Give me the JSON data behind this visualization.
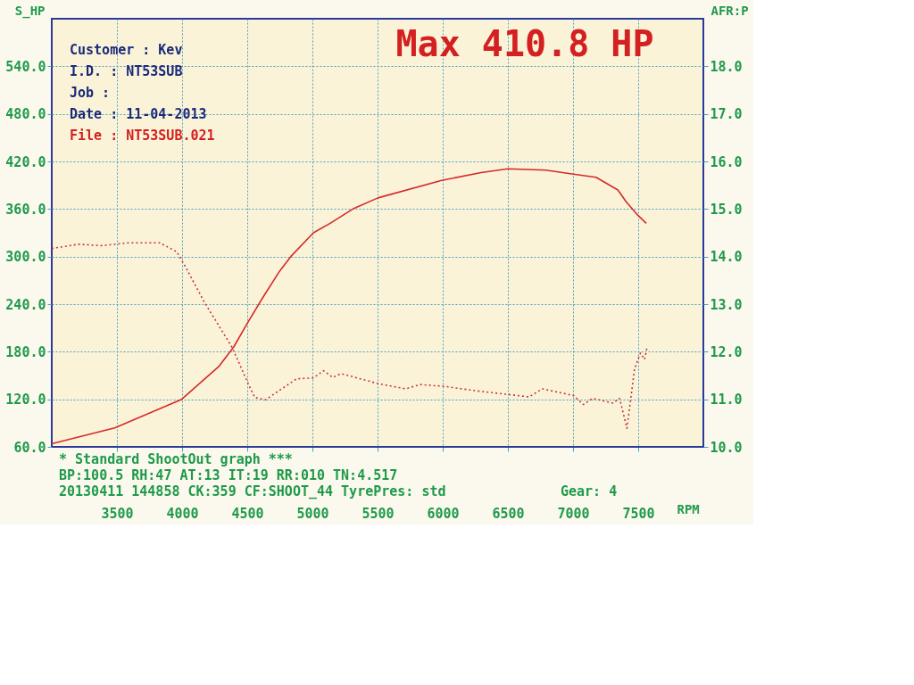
{
  "chart_data": {
    "type": "line",
    "ylabel": "S_HP",
    "y2label": "AFR:P",
    "xlabel": "RPM",
    "xlim": [
      3000,
      8000
    ],
    "xticks": [
      3500,
      4000,
      4500,
      5000,
      5500,
      6000,
      6500,
      7000,
      7500
    ],
    "ylim": [
      60,
      600
    ],
    "yticks": [
      {
        "value": 60,
        "label": "60.0"
      },
      {
        "value": 120,
        "label": "120.0"
      },
      {
        "value": 180,
        "label": "180.0"
      },
      {
        "value": 240,
        "label": "240.0"
      },
      {
        "value": 300,
        "label": "300.0"
      },
      {
        "value": 360,
        "label": "360.0"
      },
      {
        "value": 420,
        "label": "420.0"
      },
      {
        "value": 480,
        "label": "480.0"
      },
      {
        "value": 540,
        "label": "540.0"
      }
    ],
    "y2lim": [
      10,
      19
    ],
    "y2ticks": [
      {
        "value": 10,
        "label": "10.0"
      },
      {
        "value": 11,
        "label": "11.0"
      },
      {
        "value": 12,
        "label": "12.0"
      },
      {
        "value": 13,
        "label": "13.0"
      },
      {
        "value": 14,
        "label": "14.0"
      },
      {
        "value": 15,
        "label": "15.0"
      },
      {
        "value": 16,
        "label": "16.0"
      },
      {
        "value": 17,
        "label": "17.0"
      },
      {
        "value": 18,
        "label": "18.0"
      }
    ],
    "grid": true,
    "marker": "none",
    "series": [
      {
        "color": "#d42a2a",
        "line_style": "solid",
        "x": [
          3000,
          3483,
          3997,
          4280,
          4396,
          4512,
          4622,
          4750,
          4834,
          5008,
          5136,
          5310,
          5503,
          5992,
          6295,
          6500,
          6790,
          7002,
          7176,
          7344,
          7408,
          7498,
          7562
        ],
        "values": [
          64,
          84,
          120,
          161,
          186,
          219,
          249,
          282,
          300,
          330,
          342,
          360,
          374,
          396,
          406,
          410.8,
          409,
          404,
          400,
          384,
          369,
          352,
          342
        ]
      },
      {
        "color": "#c8323c",
        "line_style": "dotted",
        "axis": "y2",
        "x": [
          3000,
          3206,
          3380,
          3592,
          3830,
          3959,
          4023,
          4171,
          4384,
          4512,
          4557,
          4641,
          4770,
          4879,
          5008,
          5085,
          5156,
          5220,
          5503,
          5716,
          5825,
          6018,
          6250,
          6507,
          6662,
          6764,
          7002,
          7080,
          7151,
          7305,
          7357,
          7414,
          7472,
          7517,
          7549,
          7568
        ],
        "values": [
          14.17,
          14.26,
          14.23,
          14.29,
          14.29,
          14.1,
          13.8,
          13.04,
          12.09,
          11.3,
          11.04,
          10.99,
          11.23,
          11.43,
          11.45,
          11.6,
          11.46,
          11.54,
          11.33,
          11.22,
          11.31,
          11.27,
          11.18,
          11.1,
          11.05,
          11.22,
          11.08,
          10.89,
          11.02,
          10.92,
          11.02,
          10.39,
          11.64,
          11.97,
          11.84,
          12.09
        ]
      }
    ],
    "annotations": [
      "Max 410.8 HP",
      "Customer : Kev",
      "I.D.     : NT53SUB",
      "Job      :",
      "Date     : 11-04-2013",
      "File     : NT53SUB.021",
      "* Standard ShootOut graph ***",
      "BP:100.5 RH:47 AT:13 IT:19  RR:010 TN:4.517",
      "20130411 144858 CK:359 CF:SHOOT_44 TyrePres: std",
      "Gear: 4"
    ]
  }
}
